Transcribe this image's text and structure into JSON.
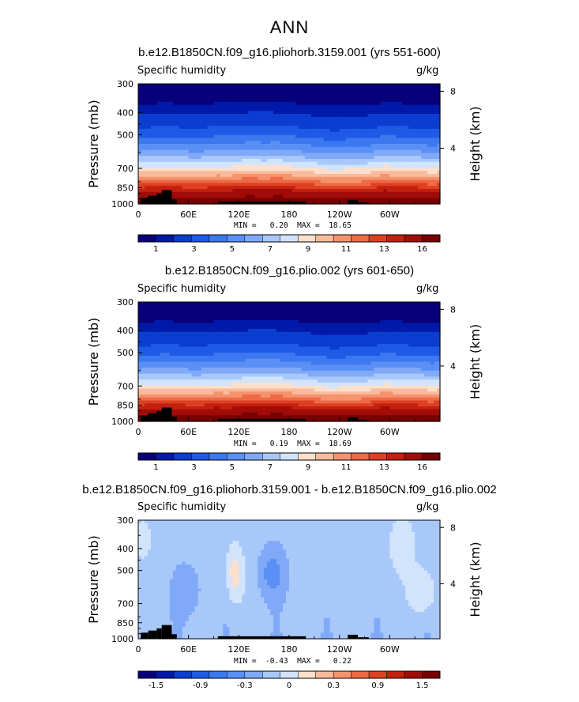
{
  "page_title": "ANN",
  "colors": {
    "seq": [
      "#08007a",
      "#0019a8",
      "#0a3dd0",
      "#1e5ae6",
      "#3c78f0",
      "#5a8ff5",
      "#80aaf7",
      "#a8c8fa",
      "#d2e4fc",
      "#fce0cc",
      "#f9bb9c",
      "#f5936e",
      "#ee6a46",
      "#de4024",
      "#c3200f",
      "#a10c08",
      "#780000"
    ],
    "diff": [
      "#08007a",
      "#0019a8",
      "#0a3dd0",
      "#1e5ae6",
      "#3c78f0",
      "#5a8ff5",
      "#80aaf7",
      "#a8c8fa",
      "#d2e4fc",
      "#fce0cc",
      "#f9bb9c",
      "#f5936e",
      "#ee6a46",
      "#de4024",
      "#c3200f",
      "#a10c08",
      "#780000"
    ]
  },
  "chart_data": [
    {
      "type": "heatmap",
      "title": "b.e12.B1850CN.f09_g16.pliohorb.3159.001 (yrs 551-600)",
      "variable": "Specific humidity",
      "units": "g/kg",
      "ylabel": "Pressure (mb)",
      "ylabel_right": "Height (km)",
      "x_ticks": [
        "0",
        "60E",
        "120E",
        "180",
        "120W",
        "60W"
      ],
      "x_tick_values": [
        0,
        60,
        120,
        180,
        240,
        300
      ],
      "xlim": [
        0,
        360
      ],
      "y_ticks": [
        "300",
        "400",
        "500",
        "700",
        "850",
        "1000"
      ],
      "y_tick_values": [
        300,
        400,
        500,
        700,
        850,
        1000
      ],
      "ylim": [
        1000,
        300
      ],
      "height_ticks": [
        "8",
        "4"
      ],
      "height_tick_values": [
        8,
        4
      ],
      "min_label": "MIN =",
      "min_value": "0.20",
      "max_label": "MAX =",
      "max_value": "18.65",
      "colorbar_labels": [
        "1",
        "3",
        "5",
        "7",
        "9",
        "11",
        "13",
        "16"
      ],
      "colorbar_levels": [
        0.5,
        1,
        2,
        3,
        4,
        5,
        6,
        7,
        8,
        9,
        10,
        11,
        12,
        13,
        14,
        16
      ],
      "field": "q_mean"
    },
    {
      "type": "heatmap",
      "title": "b.e12.B1850CN.f09_g16.plio.002 (yrs 601-650)",
      "variable": "Specific humidity",
      "units": "g/kg",
      "ylabel": "Pressure (mb)",
      "ylabel_right": "Height (km)",
      "x_ticks": [
        "0",
        "60E",
        "120E",
        "180",
        "120W",
        "60W"
      ],
      "x_tick_values": [
        0,
        60,
        120,
        180,
        240,
        300
      ],
      "xlim": [
        0,
        360
      ],
      "y_ticks": [
        "300",
        "400",
        "500",
        "700",
        "850",
        "1000"
      ],
      "y_tick_values": [
        300,
        400,
        500,
        700,
        850,
        1000
      ],
      "ylim": [
        1000,
        300
      ],
      "height_ticks": [
        "8",
        "4"
      ],
      "height_tick_values": [
        8,
        4
      ],
      "min_label": "MIN =",
      "min_value": "0.19",
      "max_label": "MAX =",
      "max_value": "18.69",
      "colorbar_labels": [
        "1",
        "3",
        "5",
        "7",
        "9",
        "11",
        "13",
        "16"
      ],
      "colorbar_levels": [
        0.5,
        1,
        2,
        3,
        4,
        5,
        6,
        7,
        8,
        9,
        10,
        11,
        12,
        13,
        14,
        16
      ],
      "field": "q_mean"
    },
    {
      "type": "heatmap",
      "title": "b.e12.B1850CN.f09_g16.pliohorb.3159.001 - b.e12.B1850CN.f09_g16.plio.002",
      "variable": "Specific humidity",
      "units": "g/kg",
      "ylabel": "Pressure (mb)",
      "ylabel_right": "Height (km)",
      "x_ticks": [
        "0",
        "60E",
        "120E",
        "180",
        "120W",
        "60W"
      ],
      "x_tick_values": [
        0,
        60,
        120,
        180,
        240,
        300
      ],
      "xlim": [
        0,
        360
      ],
      "y_ticks": [
        "300",
        "400",
        "500",
        "700",
        "850",
        "1000"
      ],
      "y_tick_values": [
        300,
        400,
        500,
        700,
        850,
        1000
      ],
      "ylim": [
        1000,
        300
      ],
      "height_ticks": [
        "8",
        "4"
      ],
      "height_tick_values": [
        8,
        4
      ],
      "min_label": "MIN =",
      "min_value": "-0.43",
      "max_label": "MAX =",
      "max_value": "0.22",
      "colorbar_labels": [
        "-1.5",
        "-0.9",
        "-0.3",
        "0",
        "0.3",
        "0.9",
        "1.5"
      ],
      "colorbar_levels": [
        -1.8,
        -1.5,
        -1.2,
        -0.9,
        -0.6,
        -0.3,
        -0.1,
        0,
        0.1,
        0.3,
        0.6,
        0.9,
        1.2,
        1.5,
        1.8,
        2.1
      ],
      "field": "q_diff"
    }
  ]
}
